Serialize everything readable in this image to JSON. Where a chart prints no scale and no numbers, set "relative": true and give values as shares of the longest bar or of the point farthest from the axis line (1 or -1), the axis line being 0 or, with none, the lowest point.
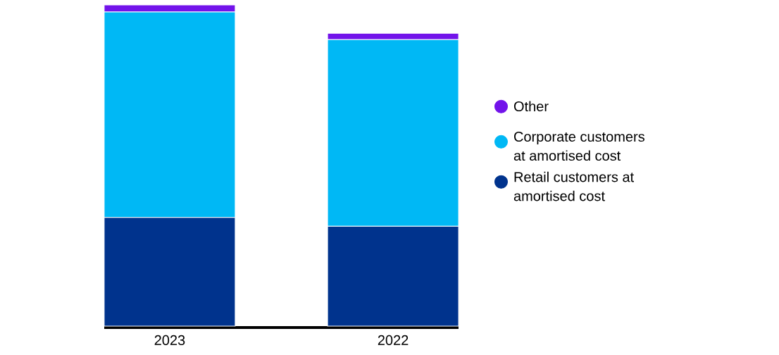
{
  "chart_data": {
    "type": "bar",
    "stacked": true,
    "relative": true,
    "legend": "right",
    "categories": [
      "2023",
      "2022"
    ],
    "series": [
      {
        "name": "Retail customers at amortised cost",
        "color": "#00338d",
        "values": [
          0.338,
          0.311
        ]
      },
      {
        "name": "Corporate customers at amortised cost",
        "color": "#00b8f5",
        "values": [
          0.64,
          0.581
        ]
      },
      {
        "name": "Other",
        "color": "#7213ea",
        "values": [
          0.022,
          0.02
        ]
      }
    ]
  }
}
